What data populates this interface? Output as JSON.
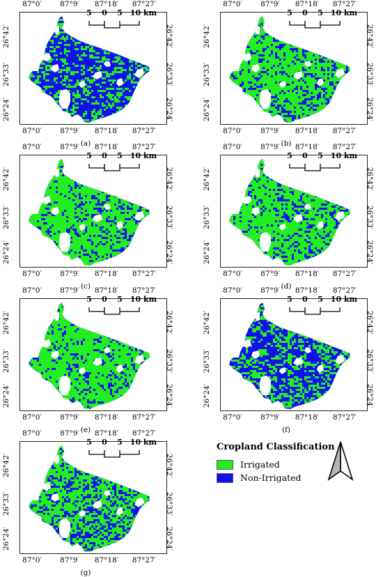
{
  "axis_labels": {
    "longitude_ticks": [
      "87°0′",
      "87°9′",
      "87°18′",
      "87°27′"
    ],
    "latitude_ticks": [
      "26°42′",
      "26°33′",
      "26°24′"
    ]
  },
  "scale_bar": {
    "labels": [
      "5",
      "0",
      "5",
      "10 km"
    ]
  },
  "panels": [
    {
      "label": "(a)",
      "irrigated_share": 0.28
    },
    {
      "label": "(b)",
      "irrigated_share": 0.62
    },
    {
      "label": "(c)",
      "irrigated_share": 0.68
    },
    {
      "label": "(d)",
      "irrigated_share": 0.66
    },
    {
      "label": "(e)",
      "irrigated_share": 0.7
    },
    {
      "label": "(f)",
      "irrigated_share": 0.33
    },
    {
      "label": "(g)",
      "irrigated_share": 0.52
    }
  ],
  "legend": {
    "title": "Cropland Classification",
    "items": [
      {
        "label": "Irrigated",
        "color": "#22ee22"
      },
      {
        "label": "Non-Irrigated",
        "color": "#1111ee"
      }
    ]
  },
  "north_arrow": {
    "icon": "north-arrow-icon"
  }
}
